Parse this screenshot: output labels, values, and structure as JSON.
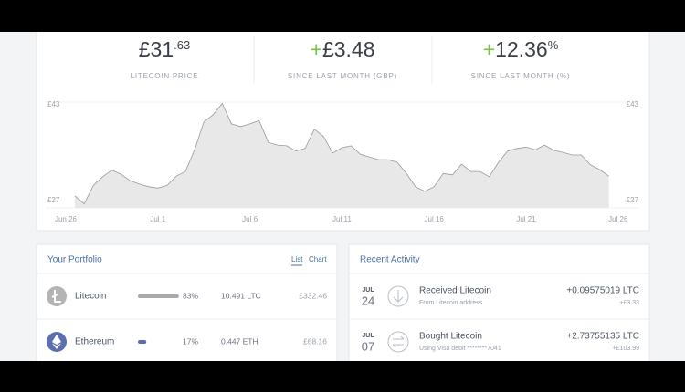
{
  "stats": [
    {
      "main": "£31",
      "sup": ".63",
      "label": "LITECOIN PRICE"
    },
    {
      "sign": "+",
      "main": "£3.48",
      "label": "SINCE LAST MONTH (GBP)"
    },
    {
      "sign": "+",
      "main": "12.36",
      "sup": "%",
      "label": "SINCE LAST MONTH (%)"
    }
  ],
  "chart_data": {
    "type": "area",
    "color": "#e8e8e8",
    "line_color": "#9a9a9a",
    "categories": [
      "Jun 26",
      null,
      null,
      null,
      null,
      null,
      null,
      null,
      null,
      null,
      "Jul 1",
      null,
      null,
      null,
      null,
      null,
      null,
      null,
      null,
      null,
      "Jul 6",
      null,
      null,
      null,
      null,
      null,
      null,
      null,
      null,
      null,
      "Jul 11",
      null,
      null,
      null,
      null,
      null,
      null,
      null,
      null,
      null,
      "Jul 16",
      null,
      null,
      null,
      null,
      null,
      null,
      null,
      null,
      null,
      "Jul 21",
      null,
      null,
      null,
      null,
      null,
      null,
      null,
      null,
      null,
      "Jul 26"
    ],
    "values": [
      null,
      28.8,
      27.6,
      30.4,
      31.7,
      32.7,
      32.1,
      31.1,
      30.6,
      30.2,
      30.0,
      30.4,
      31.8,
      32.5,
      35.8,
      40.0,
      41.1,
      42.8,
      39.7,
      39.3,
      39.7,
      40.2,
      36.9,
      36.5,
      36.4,
      35.6,
      36.0,
      38.9,
      37.8,
      35.3,
      36.1,
      36.4,
      35.1,
      34.7,
      34.3,
      34.3,
      33.9,
      32.2,
      30.2,
      29.5,
      30.2,
      32.2,
      32.0,
      33.6,
      32.5,
      32.5,
      31.7,
      33.9,
      35.6,
      36.0,
      36.2,
      35.8,
      36.5,
      35.7,
      35.4,
      35.0,
      35.0,
      33.5,
      32.8,
      31.8,
      null
    ],
    "ylim": [
      27,
      43
    ],
    "yticks": [
      {
        "value": 27,
        "label": "£27"
      },
      {
        "value": 43,
        "label": "£43"
      }
    ]
  },
  "portfolio": {
    "title": "Your Portfolio",
    "tabs": [
      "List",
      "Chart"
    ],
    "rows": [
      {
        "name": "Litecoin",
        "percent": {
          "value": 83,
          "label": "83%"
        },
        "amount": "10.491 LTC",
        "value": "£332.46",
        "color": "#a9a9a9"
      },
      {
        "name": "Ethereum",
        "percent": {
          "value": 17,
          "label": "17%"
        },
        "amount": "0.447 ETH",
        "value": "£68.16",
        "color": "#5b6fb0"
      }
    ]
  },
  "activity": {
    "title": "Recent Activity",
    "rows": [
      {
        "month": "JUL",
        "day": "24",
        "title": "Received Litecoin",
        "subtitle": "From Litecoin address",
        "amount": "+0.09575019 LTC",
        "value": "+£3.33"
      },
      {
        "month": "JUL",
        "day": "07",
        "title": "Bought Litecoin",
        "subtitle": "Using Visa debit ********7041",
        "amount": "+2.73755135 LTC",
        "value": "+£103.99"
      }
    ]
  }
}
